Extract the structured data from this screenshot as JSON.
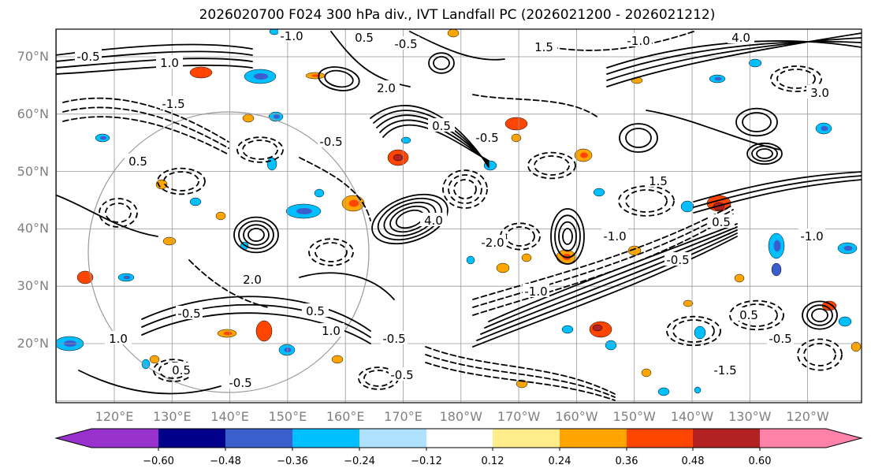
{
  "title": "2026020700 F024 300 hPa div., IVT Landfall PC (2026021200 - 2026021212)",
  "map": {
    "lat_labels": [
      {
        "text": "70°N",
        "lat": 70
      },
      {
        "text": "60°N",
        "lat": 60
      },
      {
        "text": "50°N",
        "lat": 50
      },
      {
        "text": "40°N",
        "lat": 40
      },
      {
        "text": "30°N",
        "lat": 30
      },
      {
        "text": "20°N",
        "lat": 20
      }
    ],
    "lon_labels": [
      {
        "text": "120°E",
        "lon": 120
      },
      {
        "text": "130°E",
        "lon": 130
      },
      {
        "text": "140°E",
        "lon": 140
      },
      {
        "text": "150°E",
        "lon": 150
      },
      {
        "text": "160°E",
        "lon": 160
      },
      {
        "text": "170°E",
        "lon": 170
      },
      {
        "text": "180°W",
        "lon": 180
      },
      {
        "text": "170°W",
        "lon": 190
      },
      {
        "text": "160°W",
        "lon": 200
      },
      {
        "text": "150°W",
        "lon": 210
      },
      {
        "text": "140°W",
        "lon": 220
      },
      {
        "text": "130°W",
        "lon": 230
      },
      {
        "text": "120°W",
        "lon": 240
      }
    ],
    "contour_labels": [
      "-1.0",
      "0.5",
      "-0.5",
      "1.0",
      "-0.5",
      "1.5",
      "-1.0",
      "4.0",
      "-1.5",
      "2.0",
      "-0.5",
      "3.0",
      "0.5",
      "-0.5",
      "4.0",
      "-2.0",
      "0.5",
      "-1.0",
      "2.0",
      "-0.5",
      "1.0",
      "0.5",
      "-0.5",
      "0.5",
      "-0.5",
      "1.0",
      "-0.5",
      "0.5",
      "-1.5",
      "1.5",
      "-1.0",
      "0.5",
      "-0.5",
      "-1.0",
      "-0.5"
    ]
  },
  "colorbar": {
    "colors": [
      "#9932cc",
      "#00008b",
      "#3a5fcd",
      "#00bfff",
      "#b0e2ff",
      "#ffffff",
      "#ffec8b",
      "#ffa500",
      "#ff4500",
      "#b22222",
      "#ff82ab"
    ],
    "ticks": [
      "−0.60",
      "−0.48",
      "−0.36",
      "−0.24",
      "−0.12",
      "0.12",
      "0.24",
      "0.36",
      "0.48",
      "0.60"
    ]
  }
}
